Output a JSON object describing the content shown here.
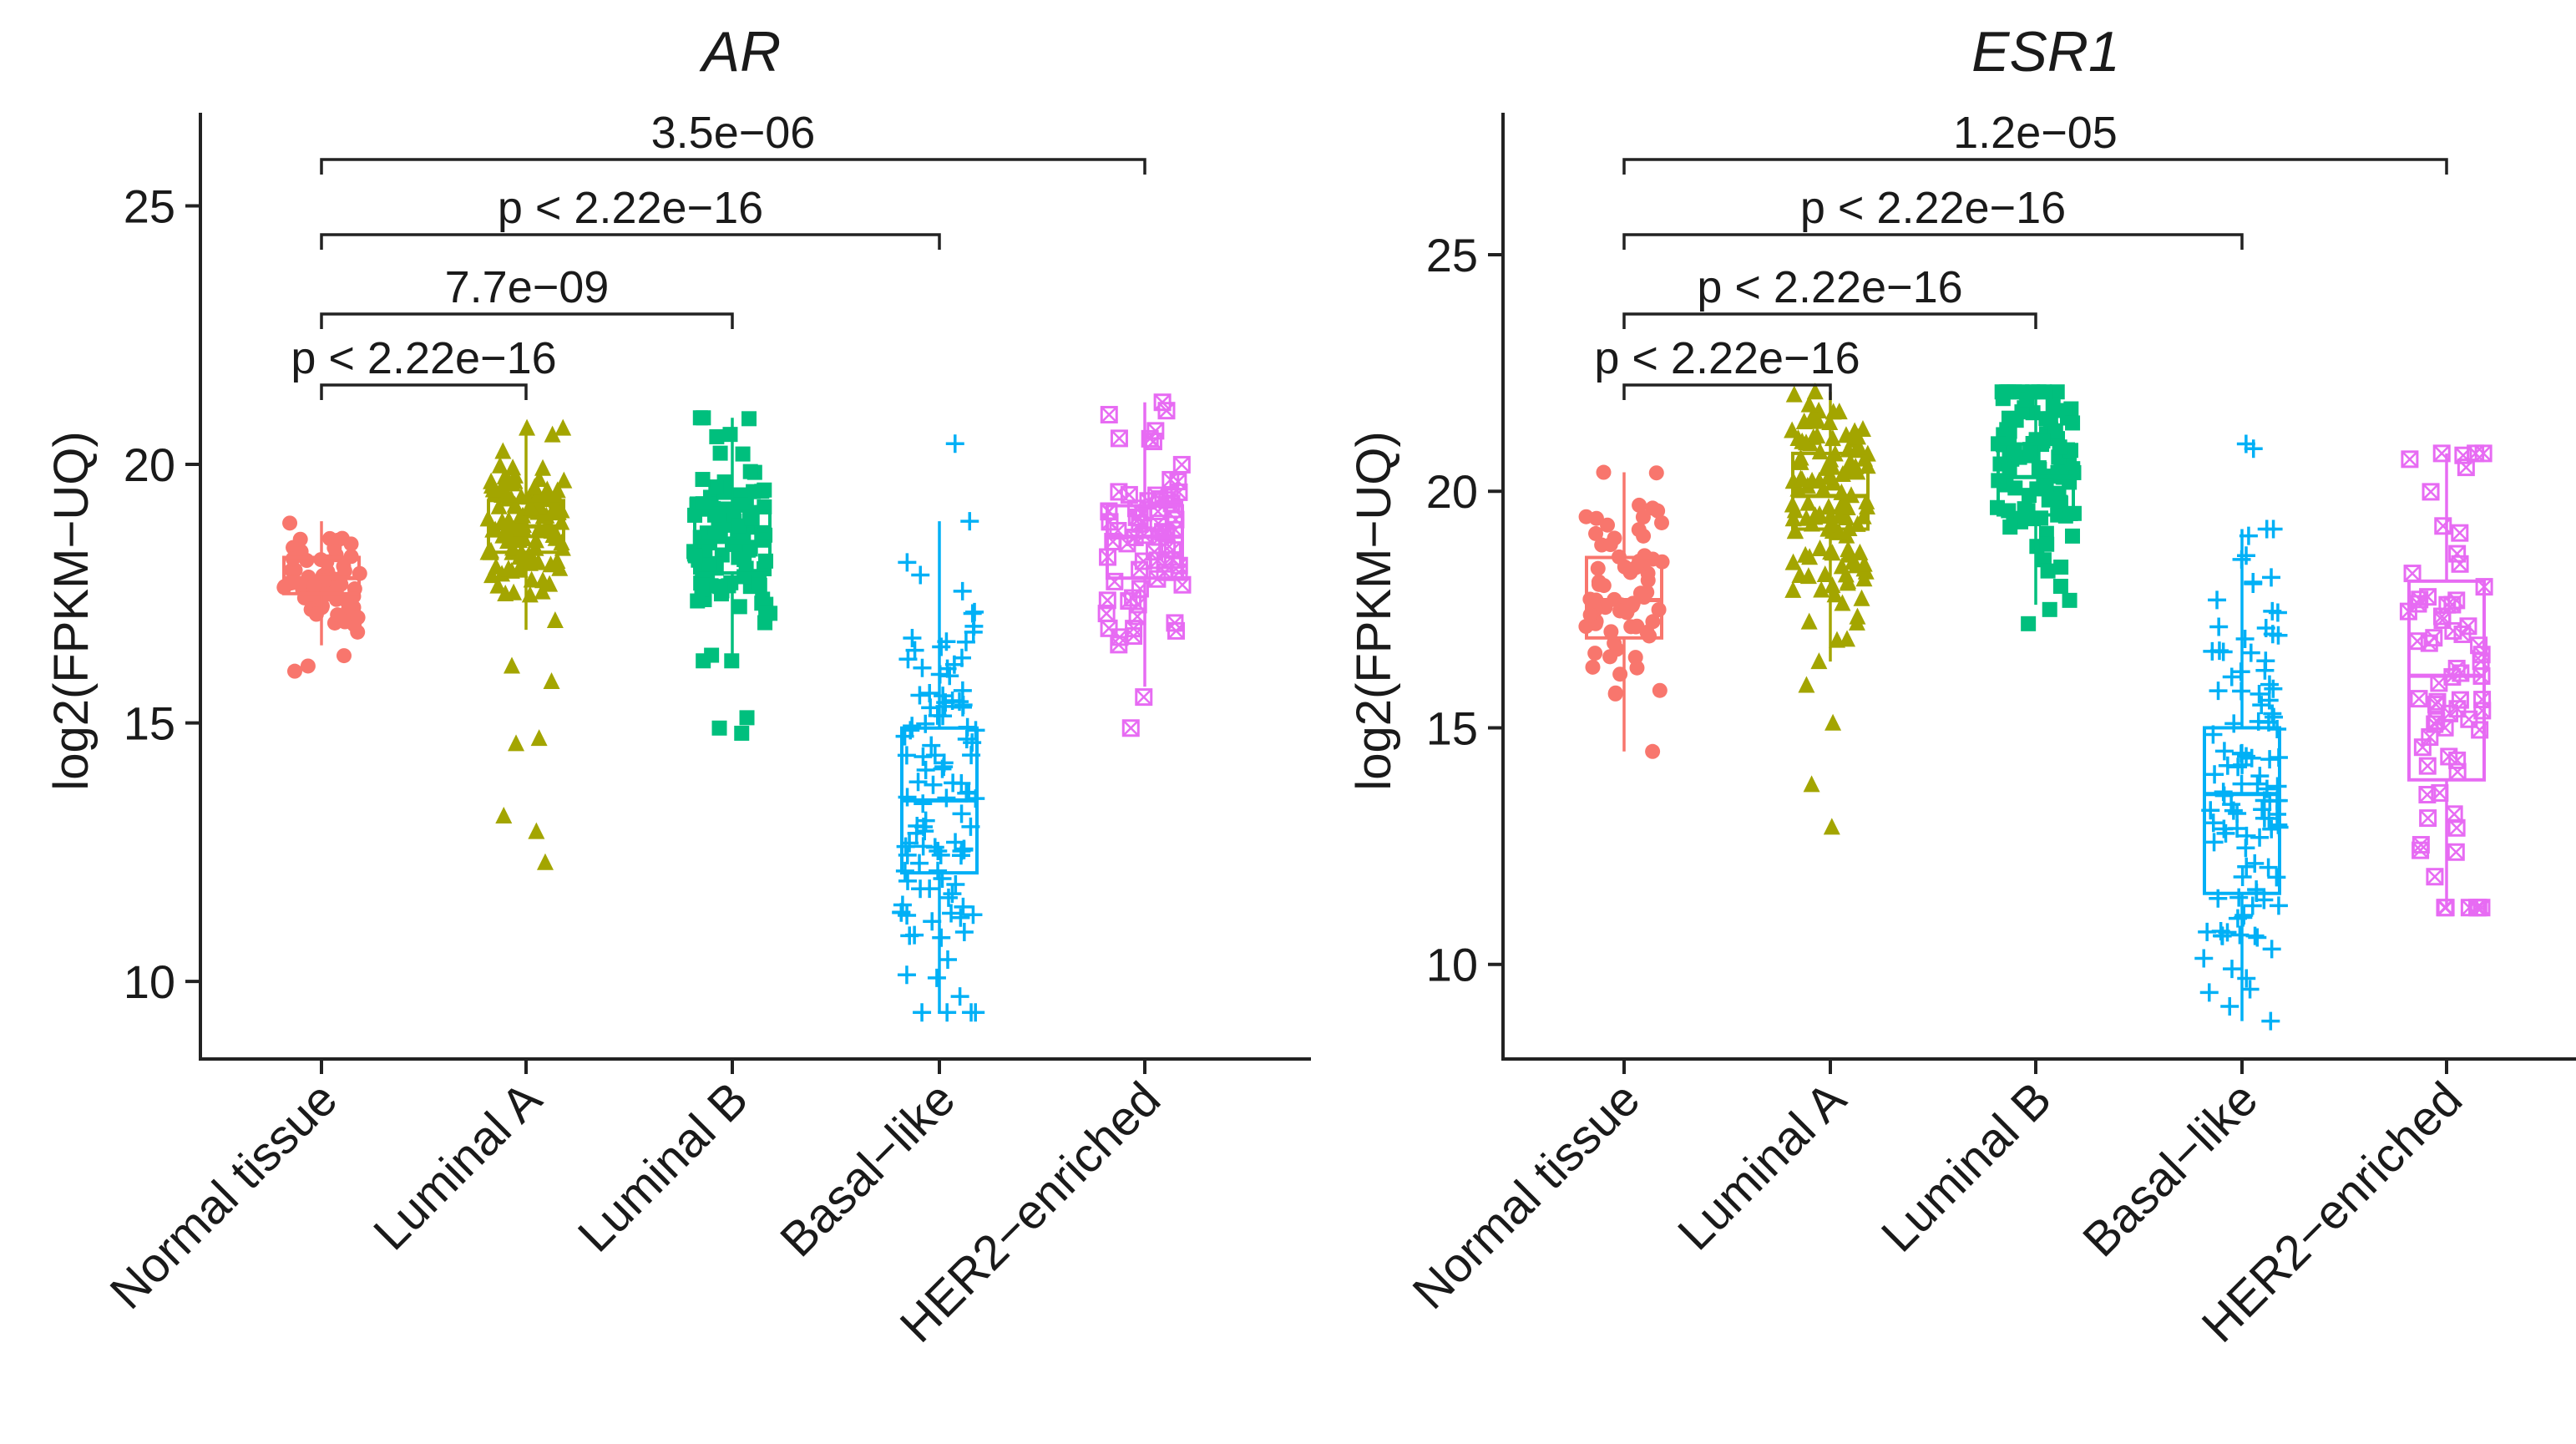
{
  "chart_data": [
    {
      "type": "box",
      "title": "AR",
      "xlabel": "",
      "ylabel": "log2(FPKM−UQ)",
      "ylim": [
        8.5,
        26.8
      ],
      "yticks": [
        10,
        15,
        20,
        25
      ],
      "categories": [
        "Normal tissue",
        "Luminal A",
        "Luminal B",
        "Basal−like",
        "HER2−enriched"
      ],
      "series": [
        {
          "category": "Normal tissue",
          "color": "#F8766D",
          "marker": "circle",
          "box": {
            "q1": 17.5,
            "median": 17.8,
            "q3": 18.2,
            "whisker_low": 16.5,
            "whisker_high": 18.9
          },
          "outliers": [
            16.3,
            16.1,
            16.0
          ]
        },
        {
          "category": "Luminal A",
          "color": "#A3A500",
          "marker": "triangle",
          "box": {
            "q1": 18.3,
            "median": 18.8,
            "q3": 19.3,
            "whisker_low": 16.8,
            "whisker_high": 20.7
          },
          "outliers": [
            16.1,
            15.8,
            14.7,
            14.6,
            13.2,
            12.9,
            12.3
          ]
        },
        {
          "category": "Luminal B",
          "color": "#00BF7D",
          "marker": "square",
          "box": {
            "q1": 17.9,
            "median": 18.5,
            "q3": 19.1,
            "whisker_low": 16.2,
            "whisker_high": 20.9
          },
          "outliers": [
            15.1,
            14.9,
            14.8
          ]
        },
        {
          "category": "Basal−like",
          "color": "#00B0F6",
          "marker": "plus",
          "box": {
            "q1": 12.1,
            "median": 13.5,
            "q3": 14.9,
            "whisker_low": 9.4,
            "whisker_high": 18.9
          },
          "outliers": [
            20.4
          ]
        },
        {
          "category": "HER2−enriched",
          "color": "#E76BF3",
          "marker": "square-cross",
          "box": {
            "q1": 17.8,
            "median": 18.6,
            "q3": 19.2,
            "whisker_low": 15.7,
            "whisker_high": 21.2
          },
          "outliers": [
            15.5,
            14.9
          ]
        }
      ],
      "comparisons": [
        {
          "from": "Normal tissue",
          "to": "Luminal A",
          "label": "p < 2.22e−16",
          "y": 23.0
        },
        {
          "from": "Normal tissue",
          "to": "Luminal B",
          "label": "7.7e−09",
          "y": 24.3
        },
        {
          "from": "Normal tissue",
          "to": "Basal−like",
          "label": "p < 2.22e−16",
          "y": 25.6
        },
        {
          "from": "Normal tissue",
          "to": "HER2−enriched",
          "label": "3.5e−06",
          "y": 26.9
        }
      ]
    },
    {
      "type": "box",
      "title": "ESR1",
      "xlabel": "",
      "ylabel": "log2(FPKM−UQ)",
      "ylim": [
        8.0,
        28.0
      ],
      "yticks": [
        10,
        15,
        20,
        25
      ],
      "categories": [
        "Normal tissue",
        "Luminal A",
        "Luminal B",
        "Basal−like",
        "HER2−enriched"
      ],
      "series": [
        {
          "category": "Normal tissue",
          "color": "#F8766D",
          "marker": "circle",
          "box": {
            "q1": 16.9,
            "median": 17.7,
            "q3": 18.6,
            "whisker_low": 14.5,
            "whisker_high": 20.4
          },
          "outliers": [
            20.4
          ]
        },
        {
          "category": "Luminal A",
          "color": "#A3A500",
          "marker": "triangle",
          "box": {
            "q1": 19.2,
            "median": 19.9,
            "q3": 20.8,
            "whisker_low": 16.4,
            "whisker_high": 22.1
          },
          "outliers": [
            15.9,
            15.1,
            13.8,
            12.9
          ]
        },
        {
          "category": "Luminal B",
          "color": "#00BF7D",
          "marker": "square",
          "box": {
            "q1": 19.5,
            "median": 20.3,
            "q3": 21.0,
            "whisker_low": 17.6,
            "whisker_high": 22.1
          },
          "outliers": [
            17.5,
            17.2
          ]
        },
        {
          "category": "Basal−like",
          "color": "#00B0F6",
          "marker": "plus",
          "box": {
            "q1": 11.5,
            "median": 13.6,
            "q3": 15.0,
            "whisker_low": 8.8,
            "whisker_high": 19.2
          },
          "outliers": [
            21.0,
            20.9
          ]
        },
        {
          "category": "HER2−enriched",
          "color": "#E76BF3",
          "marker": "square-cross",
          "box": {
            "q1": 13.9,
            "median": 16.1,
            "q3": 18.1,
            "whisker_low": 11.2,
            "whisker_high": 20.8
          },
          "outliers": []
        }
      ],
      "comparisons": [
        {
          "from": "Normal tissue",
          "to": "Luminal A",
          "label": "p < 2.22e−16",
          "y": 23.7
        },
        {
          "from": "Normal tissue",
          "to": "Luminal B",
          "label": "p < 2.22e−16",
          "y": 25.2
        },
        {
          "from": "Normal tissue",
          "to": "Basal−like",
          "label": "p < 2.22e−16",
          "y": 26.7
        },
        {
          "from": "Normal tissue",
          "to": "HER2−enriched",
          "label": "1.2e−05",
          "y": 28.2
        }
      ]
    }
  ]
}
